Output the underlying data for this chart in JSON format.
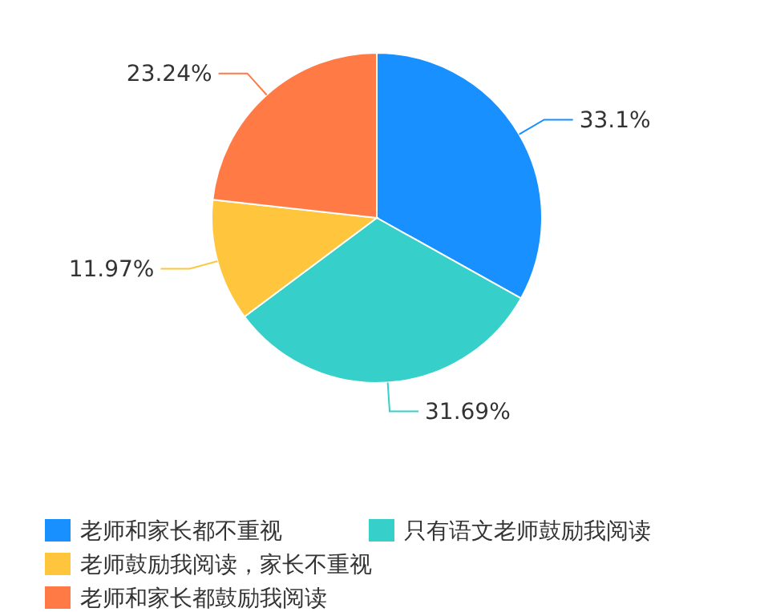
{
  "chart_data": {
    "type": "pie",
    "categories": [
      "老师和家长都不重视",
      "只有语文老师鼓励我阅读",
      "老师鼓励我阅读，家长不重视",
      "老师和家长都鼓励我阅读"
    ],
    "values": [
      33.1,
      31.69,
      11.97,
      23.24
    ],
    "colors": [
      "#1890ff",
      "#36cfc9",
      "#ffc53d",
      "#ff7a45"
    ],
    "value_labels": [
      "33.1%",
      "31.69%",
      "11.97%",
      "23.24%"
    ],
    "legend": "bottom"
  }
}
